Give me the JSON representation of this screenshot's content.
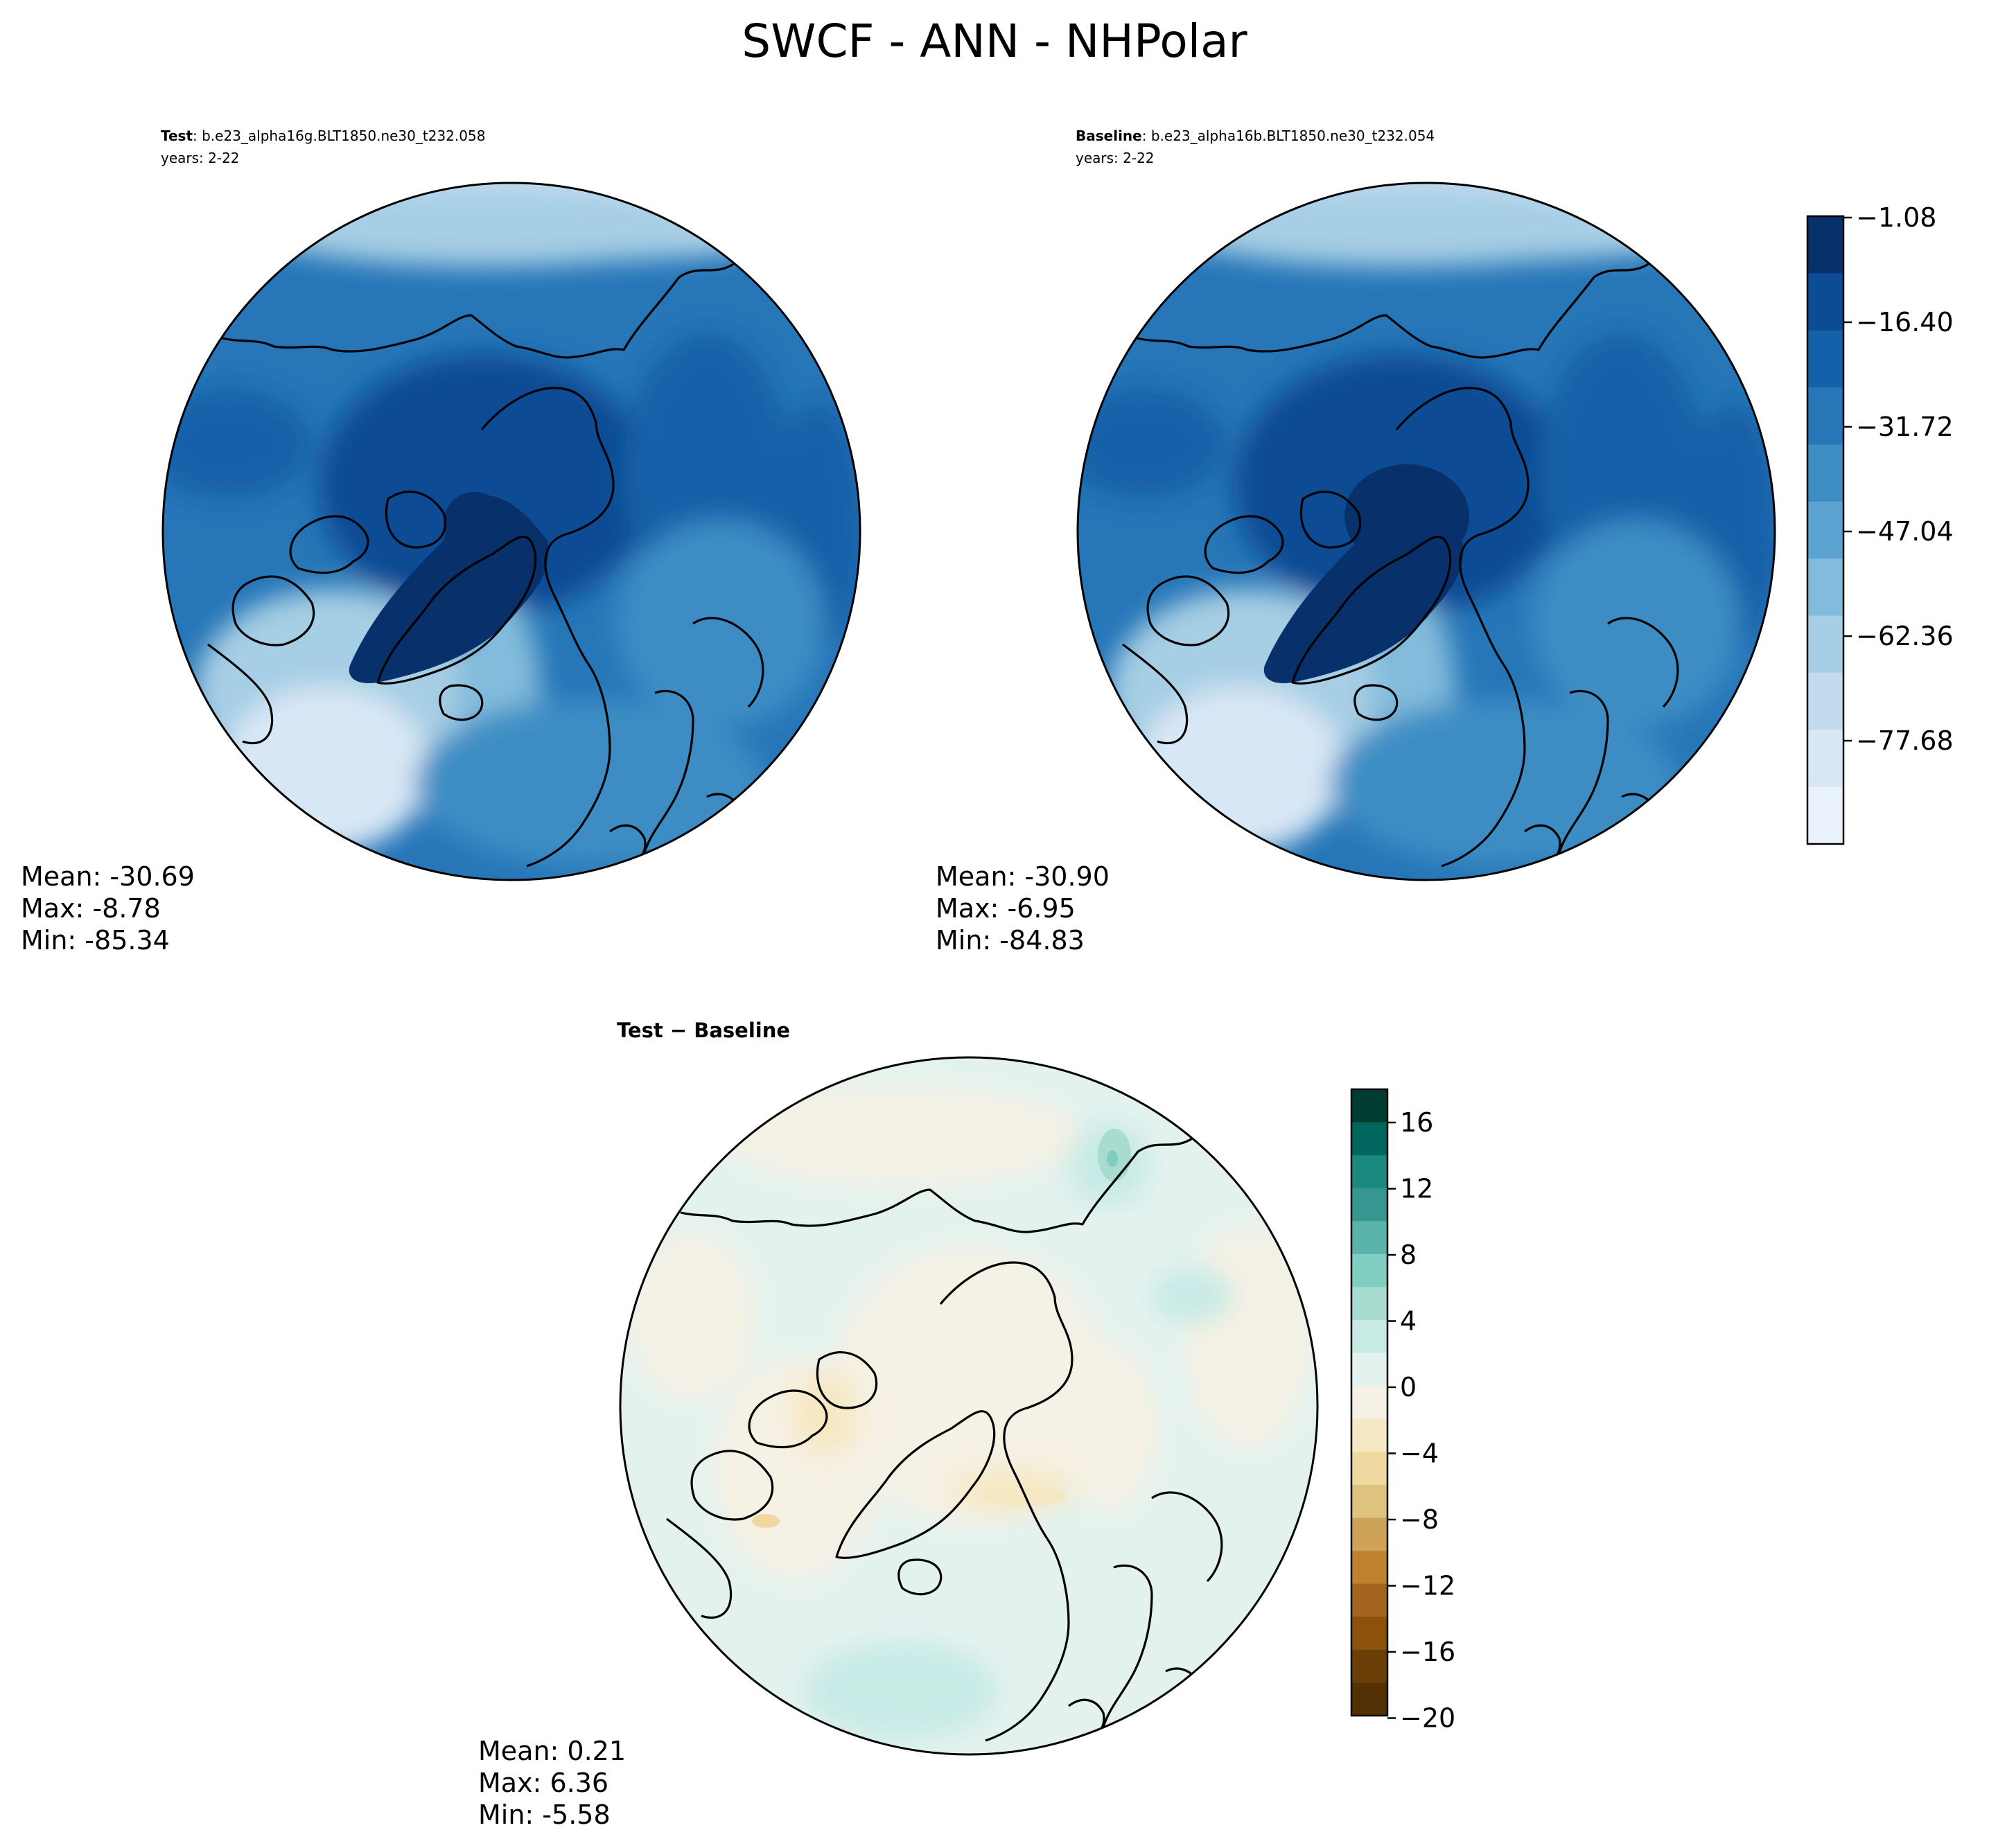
{
  "figure": {
    "title": "SWCF - ANN - NHPolar"
  },
  "panels": {
    "test": {
      "label_bold": "Test",
      "label_rest": ": b.e23_alpha16g.BLT1850.ne30_t232.058",
      "years": "years: 2-22",
      "stats": [
        "Mean: -30.69",
        "Max: -8.78",
        "Min: -85.34"
      ]
    },
    "baseline": {
      "label_bold": "Baseline",
      "label_rest": ": b.e23_alpha16b.BLT1850.ne30_t232.054",
      "years": "years: 2-22",
      "stats": [
        "Mean: -30.90",
        "Max: -6.95",
        "Min: -84.83"
      ]
    },
    "diff": {
      "title": "Test − Baseline",
      "stats": [
        "Mean:  0.21",
        "Max:  6.36",
        "Min: -5.58"
      ]
    }
  },
  "colorbars": {
    "main": {
      "ticks": [
        "−1.08",
        "−16.40",
        "−31.72",
        "−47.04",
        "−62.36",
        "−77.68"
      ],
      "colors": [
        "#08306b",
        "#0b4c94",
        "#1361a9",
        "#2676b8",
        "#3d8dc4",
        "#5ba3d0",
        "#82bbdb",
        "#a6cee4",
        "#c3dbee",
        "#d8e7f5",
        "#eaf3fb"
      ]
    },
    "diff": {
      "ticks": [
        "16",
        "12",
        "8",
        "4",
        "0",
        "−4",
        "−8",
        "−12",
        "−16",
        "−20"
      ],
      "colors": [
        "#003c30",
        "#01665e",
        "#1a8a7f",
        "#35978f",
        "#5ab4ac",
        "#80cdc1",
        "#a8dcd1",
        "#c7eae5",
        "#e4f2ef",
        "#f5f1e4",
        "#f6e8c3",
        "#efd9a1",
        "#dfc27d",
        "#cfa25a",
        "#bf812d",
        "#a3651d",
        "#8c510a",
        "#6b3e08",
        "#543005"
      ]
    }
  }
}
